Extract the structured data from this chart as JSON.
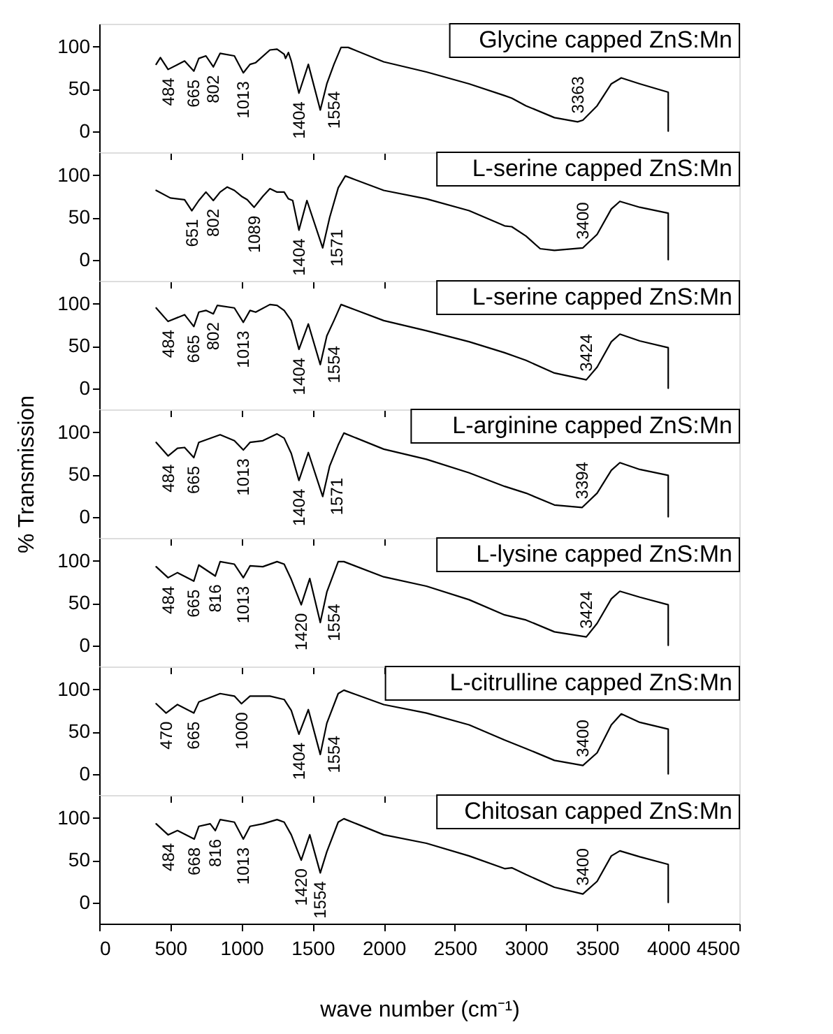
{
  "chart_data": [
    {
      "type": "line",
      "title": "Glycine capped ZnS:Mn",
      "xlim": [
        0,
        4500
      ],
      "ylim": [
        -25,
        127
      ],
      "tick_labels": "y",
      "grid": false,
      "marker": "none",
      "line_style": "solid",
      "xticks": [
        {
          "value": 0,
          "label": null
        },
        {
          "value": 500,
          "label": null
        },
        {
          "value": 1000,
          "label": null
        },
        {
          "value": 1500,
          "label": null
        },
        {
          "value": 2000,
          "label": null
        },
        {
          "value": 2500,
          "label": null
        },
        {
          "value": 3000,
          "label": null
        },
        {
          "value": 3500,
          "label": null
        },
        {
          "value": 4000,
          "label": null
        },
        {
          "value": 4500,
          "label": null
        }
      ],
      "yticks": [
        0,
        50,
        100
      ],
      "x": [
        400,
        430,
        484,
        600,
        665,
        700,
        750,
        802,
        850,
        950,
        1013,
        1060,
        1100,
        1200,
        1250,
        1300,
        1310,
        1330,
        1350,
        1404,
        1470,
        1554,
        1600,
        1650,
        1700,
        1750,
        2000,
        2300,
        2600,
        2850,
        2900,
        3000,
        3200,
        3363,
        3400,
        3500,
        3600,
        3670,
        3800,
        4000,
        4000
      ],
      "series": [
        {
          "color": "#000000",
          "values": [
            79,
            87,
            73,
            83,
            71,
            86,
            89,
            76,
            92,
            89,
            69,
            79,
            81,
            96,
            97,
            91,
            86,
            93,
            83,
            45,
            79,
            25,
            56,
            79,
            99,
            99,
            82,
            70,
            56,
            42,
            39,
            30,
            16,
            11,
            13,
            30,
            56,
            63,
            56,
            46,
            0
          ]
        }
      ],
      "annotations": [
        {
          "text": "484",
          "x": 484,
          "y": 73
        },
        {
          "text": "665",
          "x": 665,
          "y": 71
        },
        {
          "text": "802",
          "x": 802,
          "y": 76
        },
        {
          "text": "1013",
          "x": 1013,
          "y": 69
        },
        {
          "text": "1404",
          "x": 1404,
          "y": 45
        },
        {
          "text": "1554",
          "x": 1554,
          "y": 25
        },
        {
          "text": "3363",
          "x": 3363,
          "y": 11
        }
      ]
    },
    {
      "type": "line",
      "title": "L-serine capped ZnS:Mn",
      "xlim": [
        0,
        4500
      ],
      "ylim": [
        -25,
        127
      ],
      "tick_labels": "y",
      "grid": false,
      "marker": "none",
      "line_style": "solid",
      "xticks": [
        {
          "value": 0,
          "label": null
        },
        {
          "value": 500,
          "label": null
        },
        {
          "value": 1000,
          "label": null
        },
        {
          "value": 1500,
          "label": null
        },
        {
          "value": 2000,
          "label": null
        },
        {
          "value": 2500,
          "label": null
        },
        {
          "value": 3000,
          "label": null
        },
        {
          "value": 3500,
          "label": null
        },
        {
          "value": 4000,
          "label": null
        },
        {
          "value": 4500,
          "label": null
        }
      ],
      "yticks": [
        0,
        50,
        100
      ],
      "x": [
        400,
        500,
        600,
        651,
        700,
        750,
        802,
        850,
        900,
        950,
        1000,
        1040,
        1089,
        1150,
        1200,
        1250,
        1300,
        1330,
        1360,
        1404,
        1460,
        1571,
        1620,
        1680,
        1730,
        2000,
        2300,
        2600,
        2850,
        2900,
        3000,
        3100,
        3200,
        3400,
        3500,
        3600,
        3660,
        3800,
        4000,
        4000
      ],
      "series": [
        {
          "color": "#000000",
          "values": [
            82,
            73,
            71,
            58,
            70,
            80,
            70,
            80,
            86,
            82,
            75,
            71,
            62,
            75,
            84,
            80,
            80,
            72,
            70,
            35,
            70,
            14,
            50,
            85,
            99,
            82,
            72,
            58,
            40,
            39,
            28,
            13,
            11,
            14,
            30,
            60,
            69,
            62,
            55,
            0
          ]
        }
      ],
      "annotations": [
        {
          "text": "651",
          "x": 651,
          "y": 58
        },
        {
          "text": "802",
          "x": 802,
          "y": 70
        },
        {
          "text": "1089",
          "x": 1089,
          "y": 62
        },
        {
          "text": "1404",
          "x": 1404,
          "y": 35
        },
        {
          "text": "1571",
          "x": 1571,
          "y": 14
        },
        {
          "text": "3400",
          "x": 3400,
          "y": 14
        }
      ]
    },
    {
      "type": "line",
      "title": "L-serine capped ZnS:Mn",
      "xlim": [
        0,
        4500
      ],
      "ylim": [
        -25,
        127
      ],
      "tick_labels": "y",
      "grid": false,
      "marker": "none",
      "line_style": "solid",
      "xticks": [
        {
          "value": 0,
          "label": null
        },
        {
          "value": 500,
          "label": null
        },
        {
          "value": 1000,
          "label": null
        },
        {
          "value": 1500,
          "label": null
        },
        {
          "value": 2000,
          "label": null
        },
        {
          "value": 2500,
          "label": null
        },
        {
          "value": 3000,
          "label": null
        },
        {
          "value": 3500,
          "label": null
        },
        {
          "value": 4000,
          "label": null
        },
        {
          "value": 4500,
          "label": null
        }
      ],
      "yticks": [
        0,
        50,
        100
      ],
      "x": [
        400,
        484,
        600,
        665,
        700,
        750,
        802,
        830,
        950,
        1013,
        1060,
        1100,
        1200,
        1250,
        1300,
        1350,
        1404,
        1470,
        1554,
        1600,
        1650,
        1700,
        2000,
        2300,
        2600,
        2850,
        3000,
        3200,
        3424,
        3500,
        3600,
        3660,
        3800,
        4000,
        4000
      ],
      "series": [
        {
          "color": "#000000",
          "values": [
            95,
            79,
            87,
            73,
            90,
            92,
            88,
            98,
            95,
            78,
            92,
            90,
            99,
            98,
            92,
            80,
            46,
            76,
            28,
            62,
            80,
            99,
            80,
            68,
            55,
            42,
            33,
            18,
            10,
            25,
            55,
            64,
            56,
            48,
            0
          ]
        }
      ],
      "annotations": [
        {
          "text": "484",
          "x": 484,
          "y": 79
        },
        {
          "text": "665",
          "x": 665,
          "y": 73
        },
        {
          "text": "802",
          "x": 802,
          "y": 88
        },
        {
          "text": "1013",
          "x": 1013,
          "y": 78
        },
        {
          "text": "1404",
          "x": 1404,
          "y": 46
        },
        {
          "text": "1554",
          "x": 1554,
          "y": 28
        },
        {
          "text": "3424",
          "x": 3424,
          "y": 10
        }
      ]
    },
    {
      "type": "line",
      "title": "L-arginine capped ZnS:Mn",
      "ylabel": "% Transmission",
      "xlim": [
        0,
        4500
      ],
      "ylim": [
        -25,
        127
      ],
      "tick_labels": "y",
      "grid": false,
      "marker": "none",
      "line_style": "solid",
      "xticks": [
        {
          "value": 0,
          "label": null
        },
        {
          "value": 500,
          "label": null
        },
        {
          "value": 1000,
          "label": null
        },
        {
          "value": 1500,
          "label": null
        },
        {
          "value": 2000,
          "label": null
        },
        {
          "value": 2500,
          "label": null
        },
        {
          "value": 3000,
          "label": null
        },
        {
          "value": 3500,
          "label": null
        },
        {
          "value": 4000,
          "label": null
        },
        {
          "value": 4500,
          "label": null
        }
      ],
      "yticks": [
        0,
        50,
        100
      ],
      "x": [
        400,
        484,
        550,
        600,
        665,
        700,
        850,
        950,
        1013,
        1060,
        1150,
        1250,
        1300,
        1350,
        1404,
        1470,
        1571,
        1620,
        1680,
        1720,
        2000,
        2300,
        2600,
        2850,
        3000,
        3200,
        3394,
        3500,
        3600,
        3660,
        3800,
        4000,
        4000
      ],
      "series": [
        {
          "color": "#000000",
          "values": [
            88,
            72,
            81,
            82,
            70,
            88,
            97,
            90,
            79,
            88,
            90,
            98,
            93,
            75,
            43,
            76,
            24,
            60,
            85,
            99,
            80,
            68,
            52,
            36,
            28,
            14,
            11,
            28,
            55,
            64,
            56,
            49,
            0
          ]
        }
      ],
      "annotations": [
        {
          "text": "484",
          "x": 484,
          "y": 72
        },
        {
          "text": "665",
          "x": 665,
          "y": 70
        },
        {
          "text": "1013",
          "x": 1013,
          "y": 79
        },
        {
          "text": "1404",
          "x": 1404,
          "y": 43
        },
        {
          "text": "1571",
          "x": 1571,
          "y": 24
        },
        {
          "text": "3394",
          "x": 3394,
          "y": 11
        }
      ]
    },
    {
      "type": "line",
      "title": "L-lysine capped ZnS:Mn",
      "xlim": [
        0,
        4500
      ],
      "ylim": [
        -25,
        127
      ],
      "tick_labels": "y",
      "grid": false,
      "marker": "none",
      "line_style": "solid",
      "xticks": [
        {
          "value": 0,
          "label": null
        },
        {
          "value": 500,
          "label": null
        },
        {
          "value": 1000,
          "label": null
        },
        {
          "value": 1500,
          "label": null
        },
        {
          "value": 2000,
          "label": null
        },
        {
          "value": 2500,
          "label": null
        },
        {
          "value": 3000,
          "label": null
        },
        {
          "value": 3500,
          "label": null
        },
        {
          "value": 4000,
          "label": null
        },
        {
          "value": 4500,
          "label": null
        }
      ],
      "yticks": [
        0,
        50,
        100
      ],
      "x": [
        400,
        484,
        550,
        665,
        700,
        816,
        850,
        950,
        1013,
        1060,
        1150,
        1250,
        1300,
        1350,
        1420,
        1480,
        1554,
        1600,
        1680,
        1720,
        2000,
        2300,
        2600,
        2850,
        3000,
        3200,
        3424,
        3500,
        3600,
        3660,
        3800,
        4000,
        4000
      ],
      "series": [
        {
          "color": "#000000",
          "values": [
            93,
            80,
            86,
            76,
            95,
            82,
            99,
            96,
            80,
            94,
            93,
            99,
            96,
            78,
            48,
            79,
            27,
            63,
            99,
            99,
            81,
            70,
            54,
            36,
            30,
            16,
            10,
            26,
            55,
            64,
            57,
            48,
            0
          ]
        }
      ],
      "annotations": [
        {
          "text": "484",
          "x": 484,
          "y": 80
        },
        {
          "text": "665",
          "x": 665,
          "y": 76
        },
        {
          "text": "816",
          "x": 816,
          "y": 82
        },
        {
          "text": "1013",
          "x": 1013,
          "y": 80
        },
        {
          "text": "1420",
          "x": 1420,
          "y": 48
        },
        {
          "text": "1554",
          "x": 1554,
          "y": 27
        },
        {
          "text": "3424",
          "x": 3424,
          "y": 10
        }
      ]
    },
    {
      "type": "line",
      "title": "L-citrulline capped ZnS:Mn",
      "xlim": [
        0,
        4500
      ],
      "ylim": [
        -25,
        127
      ],
      "tick_labels": "y",
      "grid": false,
      "marker": "none",
      "line_style": "solid",
      "xticks": [
        {
          "value": 0,
          "label": null
        },
        {
          "value": 500,
          "label": null
        },
        {
          "value": 1000,
          "label": null
        },
        {
          "value": 1500,
          "label": null
        },
        {
          "value": 2000,
          "label": null
        },
        {
          "value": 2500,
          "label": null
        },
        {
          "value": 3000,
          "label": null
        },
        {
          "value": 3500,
          "label": null
        },
        {
          "value": 4000,
          "label": null
        },
        {
          "value": 4500,
          "label": null
        }
      ],
      "yticks": [
        0,
        50,
        100
      ],
      "x": [
        400,
        470,
        550,
        665,
        700,
        850,
        950,
        1000,
        1060,
        1200,
        1300,
        1350,
        1404,
        1470,
        1554,
        1600,
        1680,
        1720,
        2000,
        2300,
        2600,
        2850,
        3000,
        3200,
        3400,
        3500,
        3600,
        3670,
        3800,
        4000,
        4000
      ],
      "series": [
        {
          "color": "#000000",
          "values": [
            83,
            72,
            82,
            72,
            85,
            95,
            92,
            83,
            92,
            92,
            88,
            75,
            47,
            76,
            23,
            60,
            95,
            99,
            82,
            72,
            58,
            40,
            30,
            16,
            10,
            25,
            58,
            71,
            61,
            53,
            0
          ]
        }
      ],
      "annotations": [
        {
          "text": "470",
          "x": 470,
          "y": 72
        },
        {
          "text": "665",
          "x": 665,
          "y": 72
        },
        {
          "text": "1000",
          "x": 1000,
          "y": 83
        },
        {
          "text": "1404",
          "x": 1404,
          "y": 47
        },
        {
          "text": "1554",
          "x": 1554,
          "y": 23
        },
        {
          "text": "3400",
          "x": 3400,
          "y": 10
        }
      ]
    },
    {
      "type": "line",
      "title": "Chitosan capped ZnS:Mn",
      "xlabel": "wave number (cm⁻¹)",
      "xlim": [
        0,
        4500
      ],
      "ylim": [
        -25,
        127
      ],
      "grid": false,
      "marker": "none",
      "line_style": "solid",
      "xticks": [
        0,
        500,
        1000,
        1500,
        2000,
        2500,
        3000,
        3500,
        4000,
        4500
      ],
      "yticks": [
        0,
        50,
        100
      ],
      "x": [
        400,
        484,
        550,
        668,
        700,
        780,
        816,
        850,
        950,
        1013,
        1060,
        1150,
        1250,
        1300,
        1350,
        1420,
        1480,
        1554,
        1600,
        1680,
        1720,
        2000,
        2300,
        2600,
        2850,
        2900,
        3000,
        3200,
        3400,
        3500,
        3600,
        3660,
        3800,
        4000,
        4000
      ],
      "series": [
        {
          "color": "#000000",
          "values": [
            93,
            80,
            85,
            75,
            90,
            93,
            85,
            98,
            95,
            75,
            90,
            93,
            98,
            95,
            80,
            50,
            80,
            35,
            60,
            95,
            99,
            80,
            70,
            55,
            40,
            41,
            33,
            18,
            10,
            25,
            55,
            61,
            54,
            45,
            0
          ]
        }
      ],
      "annotations": [
        {
          "text": "484",
          "x": 484,
          "y": 80
        },
        {
          "text": "668",
          "x": 668,
          "y": 75
        },
        {
          "text": "816",
          "x": 816,
          "y": 85
        },
        {
          "text": "1013",
          "x": 1013,
          "y": 75
        },
        {
          "text": "1420",
          "x": 1420,
          "y": 50
        },
        {
          "text": "1554",
          "x": 1554,
          "y": 35
        },
        {
          "text": "3400",
          "x": 3400,
          "y": 10
        }
      ]
    }
  ]
}
